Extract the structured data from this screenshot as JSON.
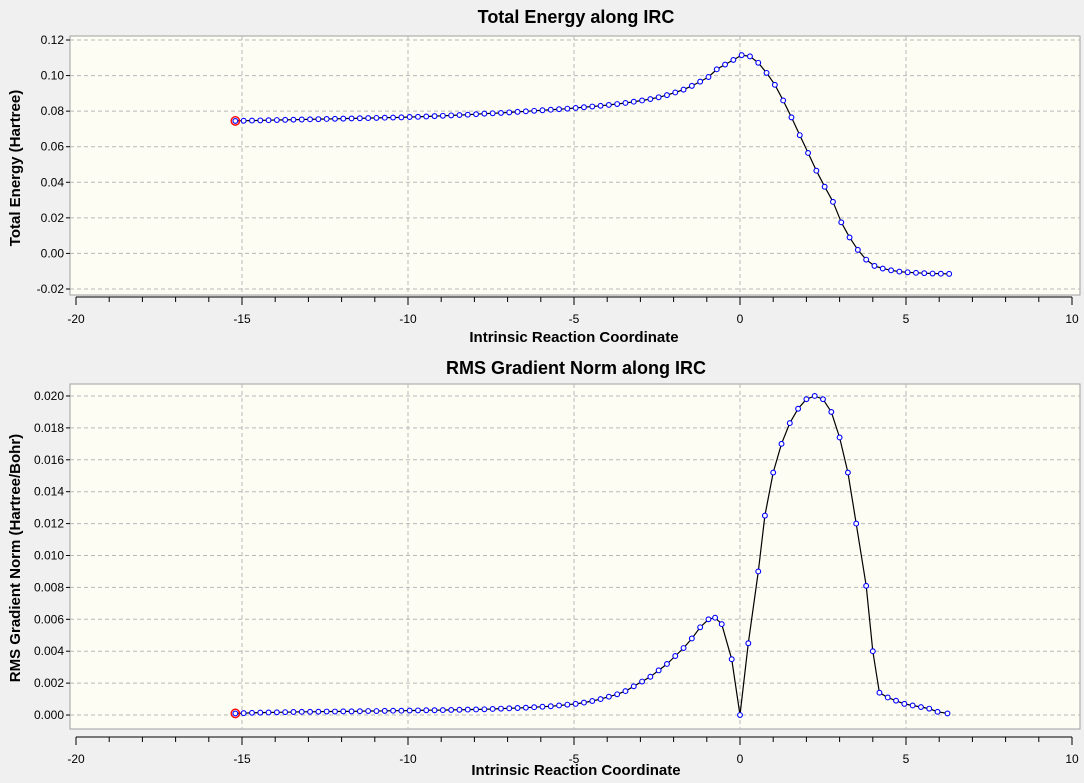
{
  "chart_data": [
    {
      "type": "line",
      "title": "Total Energy along IRC",
      "xlabel": "Intrinsic Reaction Coordinate",
      "ylabel": "Total Energy (Hartree)",
      "xlim": [
        -20,
        10
      ],
      "ylim": [
        -0.02,
        0.12
      ],
      "x_ticks": [
        "-20",
        "-15",
        "-10",
        "-5",
        "0",
        "5",
        "10"
      ],
      "y_ticks": [
        "-0.02",
        "0.00",
        "0.02",
        "0.04",
        "0.06",
        "0.08",
        "0.10",
        "0.12"
      ],
      "grid": true,
      "plot_background": "#fdfdf4",
      "line_color": "#000000",
      "marker_color": "#0000ff",
      "highlight_color": "#ff0000",
      "highlighted_point": {
        "x": -15.2,
        "y": 0.0745
      },
      "series": [
        {
          "points": [
            [
              -15.2,
              0.0745
            ],
            [
              -14.95,
              0.0746
            ],
            [
              -14.7,
              0.0747
            ],
            [
              -14.45,
              0.0748
            ],
            [
              -14.2,
              0.0749
            ],
            [
              -13.95,
              0.075
            ],
            [
              -13.7,
              0.0751
            ],
            [
              -13.45,
              0.0752
            ],
            [
              -13.2,
              0.0753
            ],
            [
              -12.95,
              0.0754
            ],
            [
              -12.7,
              0.0755
            ],
            [
              -12.45,
              0.0756
            ],
            [
              -12.2,
              0.0757
            ],
            [
              -11.95,
              0.0758
            ],
            [
              -11.7,
              0.0759
            ],
            [
              -11.45,
              0.076
            ],
            [
              -11.2,
              0.0761
            ],
            [
              -10.95,
              0.0762
            ],
            [
              -10.7,
              0.0763
            ],
            [
              -10.45,
              0.0764
            ],
            [
              -10.2,
              0.0765
            ],
            [
              -9.95,
              0.0767
            ],
            [
              -9.7,
              0.0768
            ],
            [
              -9.45,
              0.077
            ],
            [
              -9.2,
              0.0772
            ],
            [
              -8.95,
              0.0774
            ],
            [
              -8.7,
              0.0776
            ],
            [
              -8.45,
              0.0778
            ],
            [
              -8.2,
              0.078
            ],
            [
              -7.95,
              0.0783
            ],
            [
              -7.7,
              0.0786
            ],
            [
              -7.45,
              0.0788
            ],
            [
              -7.2,
              0.079
            ],
            [
              -6.95,
              0.0793
            ],
            [
              -6.7,
              0.0796
            ],
            [
              -6.45,
              0.0799
            ],
            [
              -6.2,
              0.0802
            ],
            [
              -5.95,
              0.0805
            ],
            [
              -5.7,
              0.0808
            ],
            [
              -5.45,
              0.0811
            ],
            [
              -5.2,
              0.0814
            ],
            [
              -4.95,
              0.0818
            ],
            [
              -4.7,
              0.0822
            ],
            [
              -4.45,
              0.0826
            ],
            [
              -4.2,
              0.083
            ],
            [
              -3.95,
              0.0835
            ],
            [
              -3.7,
              0.084
            ],
            [
              -3.45,
              0.0846
            ],
            [
              -3.2,
              0.0853
            ],
            [
              -2.95,
              0.086
            ],
            [
              -2.7,
              0.0868
            ],
            [
              -2.45,
              0.0878
            ],
            [
              -2.2,
              0.089
            ],
            [
              -1.95,
              0.0905
            ],
            [
              -1.7,
              0.0921
            ],
            [
              -1.45,
              0.0942
            ],
            [
              -1.2,
              0.0966
            ],
            [
              -0.95,
              0.0992
            ],
            [
              -0.7,
              0.1035
            ],
            [
              -0.45,
              0.1062
            ],
            [
              -0.2,
              0.1088
            ],
            [
              0.05,
              0.1115
            ],
            [
              0.3,
              0.1108
            ],
            [
              0.55,
              0.1072
            ],
            [
              0.8,
              0.1015
            ],
            [
              1.05,
              0.0948
            ],
            [
              1.3,
              0.086
            ],
            [
              1.55,
              0.0765
            ],
            [
              1.8,
              0.0665
            ],
            [
              2.05,
              0.0565
            ],
            [
              2.3,
              0.0465
            ],
            [
              2.55,
              0.0375
            ],
            [
              2.8,
              0.029
            ],
            [
              3.05,
              0.0175
            ],
            [
              3.3,
              0.009
            ],
            [
              3.55,
              0.002
            ],
            [
              3.8,
              -0.0035
            ],
            [
              4.05,
              -0.007
            ],
            [
              4.3,
              -0.0085
            ],
            [
              4.55,
              -0.0095
            ],
            [
              4.8,
              -0.0102
            ],
            [
              5.05,
              -0.0106
            ],
            [
              5.3,
              -0.0109
            ],
            [
              5.55,
              -0.0111
            ],
            [
              5.8,
              -0.0113
            ],
            [
              6.05,
              -0.0114
            ],
            [
              6.3,
              -0.0115
            ]
          ]
        }
      ]
    },
    {
      "type": "line",
      "title": "RMS Gradient Norm along IRC",
      "xlabel": "Intrinsic Reaction Coordinate",
      "ylabel": "RMS Gradient Norm (Hartree/Bohr)",
      "xlim": [
        -20,
        10
      ],
      "ylim": [
        -0.0005,
        0.0205
      ],
      "x_ticks": [
        "-20",
        "-15",
        "-10",
        "-5",
        "0",
        "5",
        "10"
      ],
      "y_ticks": [
        "0.000",
        "0.002",
        "0.004",
        "0.006",
        "0.008",
        "0.010",
        "0.012",
        "0.014",
        "0.016",
        "0.018",
        "0.020"
      ],
      "grid": true,
      "plot_background": "#fdfdf4",
      "line_color": "#000000",
      "marker_color": "#0000ff",
      "highlight_color": "#ff0000",
      "highlighted_point": {
        "x": -15.2,
        "y": 0.0001
      },
      "series": [
        {
          "points": [
            [
              -15.2,
              0.0001
            ],
            [
              -14.95,
              0.00012
            ],
            [
              -14.7,
              0.00014
            ],
            [
              -14.45,
              0.00015
            ],
            [
              -14.2,
              0.00016
            ],
            [
              -13.95,
              0.00017
            ],
            [
              -13.7,
              0.00018
            ],
            [
              -13.45,
              0.00019
            ],
            [
              -13.2,
              0.0002
            ],
            [
              -12.95,
              0.0002
            ],
            [
              -12.7,
              0.00021
            ],
            [
              -12.45,
              0.00022
            ],
            [
              -12.2,
              0.00022
            ],
            [
              -11.95,
              0.00023
            ],
            [
              -11.7,
              0.00023
            ],
            [
              -11.45,
              0.00024
            ],
            [
              -11.2,
              0.00025
            ],
            [
              -10.95,
              0.00025
            ],
            [
              -10.7,
              0.00026
            ],
            [
              -10.45,
              0.00027
            ],
            [
              -10.2,
              0.00027
            ],
            [
              -9.95,
              0.00028
            ],
            [
              -9.7,
              0.00029
            ],
            [
              -9.45,
              0.0003
            ],
            [
              -9.2,
              0.0003
            ],
            [
              -8.95,
              0.00031
            ],
            [
              -8.7,
              0.00032
            ],
            [
              -8.45,
              0.00033
            ],
            [
              -8.2,
              0.00034
            ],
            [
              -7.95,
              0.00035
            ],
            [
              -7.7,
              0.00036
            ],
            [
              -7.45,
              0.00038
            ],
            [
              -7.2,
              0.0004
            ],
            [
              -6.95,
              0.00042
            ],
            [
              -6.7,
              0.00044
            ],
            [
              -6.45,
              0.00046
            ],
            [
              -6.2,
              0.00049
            ],
            [
              -5.95,
              0.00052
            ],
            [
              -5.7,
              0.00055
            ],
            [
              -5.45,
              0.0006
            ],
            [
              -5.2,
              0.00065
            ],
            [
              -4.95,
              0.0007
            ],
            [
              -4.7,
              0.00078
            ],
            [
              -4.45,
              0.00088
            ],
            [
              -4.2,
              0.001
            ],
            [
              -3.95,
              0.00115
            ],
            [
              -3.7,
              0.0013
            ],
            [
              -3.45,
              0.0015
            ],
            [
              -3.2,
              0.0018
            ],
            [
              -2.95,
              0.0021
            ],
            [
              -2.7,
              0.0024
            ],
            [
              -2.45,
              0.0028
            ],
            [
              -2.2,
              0.0032
            ],
            [
              -1.95,
              0.0037
            ],
            [
              -1.7,
              0.0042
            ],
            [
              -1.45,
              0.0048
            ],
            [
              -1.2,
              0.0055
            ],
            [
              -0.95,
              0.006
            ],
            [
              -0.75,
              0.0061
            ],
            [
              -0.55,
              0.0057
            ],
            [
              -0.25,
              0.0035
            ],
            [
              0.0,
              0.0
            ],
            [
              0.25,
              0.0045
            ],
            [
              0.55,
              0.009
            ],
            [
              0.75,
              0.0125
            ],
            [
              1.0,
              0.0152
            ],
            [
              1.25,
              0.017
            ],
            [
              1.5,
              0.0183
            ],
            [
              1.75,
              0.0192
            ],
            [
              2.0,
              0.0198
            ],
            [
              2.25,
              0.02
            ],
            [
              2.5,
              0.0198
            ],
            [
              2.75,
              0.019
            ],
            [
              3.0,
              0.0174
            ],
            [
              3.25,
              0.0152
            ],
            [
              3.5,
              0.012
            ],
            [
              3.8,
              0.0081
            ],
            [
              4.0,
              0.004
            ],
            [
              4.2,
              0.0014
            ],
            [
              4.45,
              0.0011
            ],
            [
              4.7,
              0.0009
            ],
            [
              4.95,
              0.0007
            ],
            [
              5.2,
              0.0006
            ],
            [
              5.45,
              0.0005
            ],
            [
              5.7,
              0.0004
            ],
            [
              5.95,
              0.0002
            ],
            [
              6.25,
              0.0001
            ]
          ]
        }
      ]
    }
  ]
}
